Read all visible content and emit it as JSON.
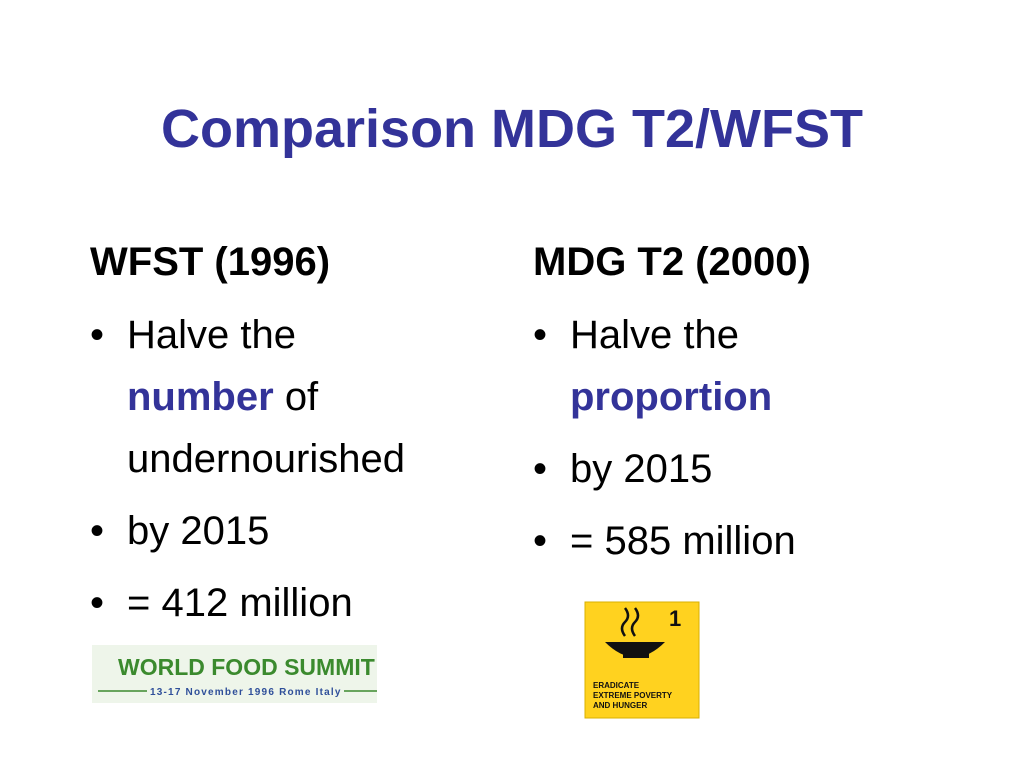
{
  "title": "Comparison MDG T2/WFST",
  "columns": [
    {
      "heading": "WFST (1996)",
      "bullets": [
        {
          "before": "Halve the",
          "highlight": "number",
          "after": "of undernourished"
        },
        {
          "before": "by 2015"
        },
        {
          "before": "= 412 million"
        }
      ]
    },
    {
      "heading": "MDG T2 (2000)",
      "bullets": [
        {
          "before": "Halve the",
          "highlight": "proportion"
        },
        {
          "before": "by 2015"
        },
        {
          "before": "= 585 million"
        }
      ]
    }
  ],
  "wfs_logo": {
    "name": "WORLD FOOD SUMMIT",
    "dates": "13-17 November 1996 Rome Italy"
  },
  "mdg_icon": {
    "number": "1",
    "lines": [
      "ERADICATE",
      "EXTREME POVERTY",
      "AND HUNGER"
    ]
  }
}
